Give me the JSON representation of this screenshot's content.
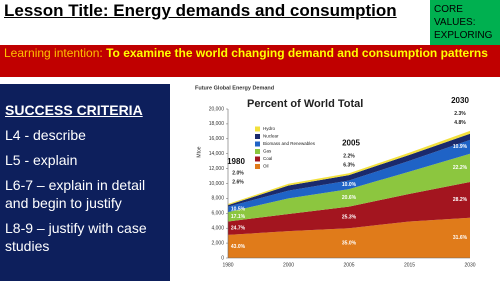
{
  "header": {
    "title": "Lesson Title: Energy demands and consumption"
  },
  "core_values": "CORE VALUES: EXPLORING",
  "learning_intention": {
    "label": "Learning intention:",
    "text": "To examine the world changing demand and consumption patterns"
  },
  "success_criteria": {
    "heading": "SUCCESS CRITERIA",
    "items": [
      "L4 - describe",
      "L5 - explain",
      "L6-7 – explain in detail and begin to justify",
      "L8-9 – justify with case studies"
    ]
  },
  "chart_data": {
    "type": "stacked_area",
    "title": "Future Global Energy Demand",
    "subtitle": "Percent of World Total",
    "y_label": "Mtoe",
    "categories": [
      "1980",
      "2000",
      "2005",
      "2015",
      "2030"
    ],
    "period_labels": [
      "1980",
      null,
      "2005",
      null,
      "2030"
    ],
    "ylim": [
      0,
      20000
    ],
    "yticks": [
      0,
      {
        "value": 2000,
        "label": "2,000"
      },
      {
        "value": 4000,
        "label": "4,000"
      },
      {
        "value": 6000,
        "label": "6,000"
      },
      {
        "value": 8000,
        "label": "8,000"
      },
      {
        "value": 10000,
        "label": "10,000"
      },
      {
        "value": 12000,
        "label": "12,000"
      },
      {
        "value": 14000,
        "label": "14,000"
      },
      {
        "value": 16000,
        "label": "16,000"
      },
      {
        "value": 18000,
        "label": "18,000"
      },
      {
        "value": 20000,
        "label": "20,000"
      }
    ],
    "series": [
      {
        "name": "Oil",
        "color": "#e07b1a",
        "values": [
          3100,
          3600,
          4000,
          4900,
          5400
        ],
        "value_labels": [
          "43.0%",
          null,
          "35.0%",
          null,
          "31.6%"
        ]
      },
      {
        "name": "Coal",
        "color": "#a3151f",
        "values": [
          1800,
          2300,
          2900,
          3700,
          4800
        ],
        "value_labels": [
          "24.7%",
          null,
          "25.3%",
          null,
          "28.2%"
        ]
      },
      {
        "name": "Gas",
        "color": "#8cc63f",
        "values": [
          1250,
          2100,
          2350,
          3000,
          3800
        ],
        "value_labels": [
          "17.1%",
          null,
          "20.6%",
          null,
          "22.2%"
        ]
      },
      {
        "name": "Biomass and Renewables",
        "color": "#1f63c6",
        "values": [
          750,
          1050,
          1150,
          1450,
          1850
        ],
        "value_labels": [
          "10.5%",
          null,
          "10.0%",
          null,
          "10.9%"
        ]
      },
      {
        "name": "Nuclear",
        "color": "#1a2a6c",
        "values": [
          190,
          680,
          720,
          800,
          820
        ],
        "value_labels": [
          "2.6%",
          null,
          "6.3%",
          null,
          "4.8%"
        ]
      },
      {
        "name": "Hydro",
        "color": "#f2e03c",
        "values": [
          150,
          230,
          250,
          300,
          390
        ],
        "value_labels": [
          "2.0%",
          null,
          "2.2%",
          null,
          "2.3%"
        ]
      }
    ],
    "legend_position": "upper left"
  }
}
